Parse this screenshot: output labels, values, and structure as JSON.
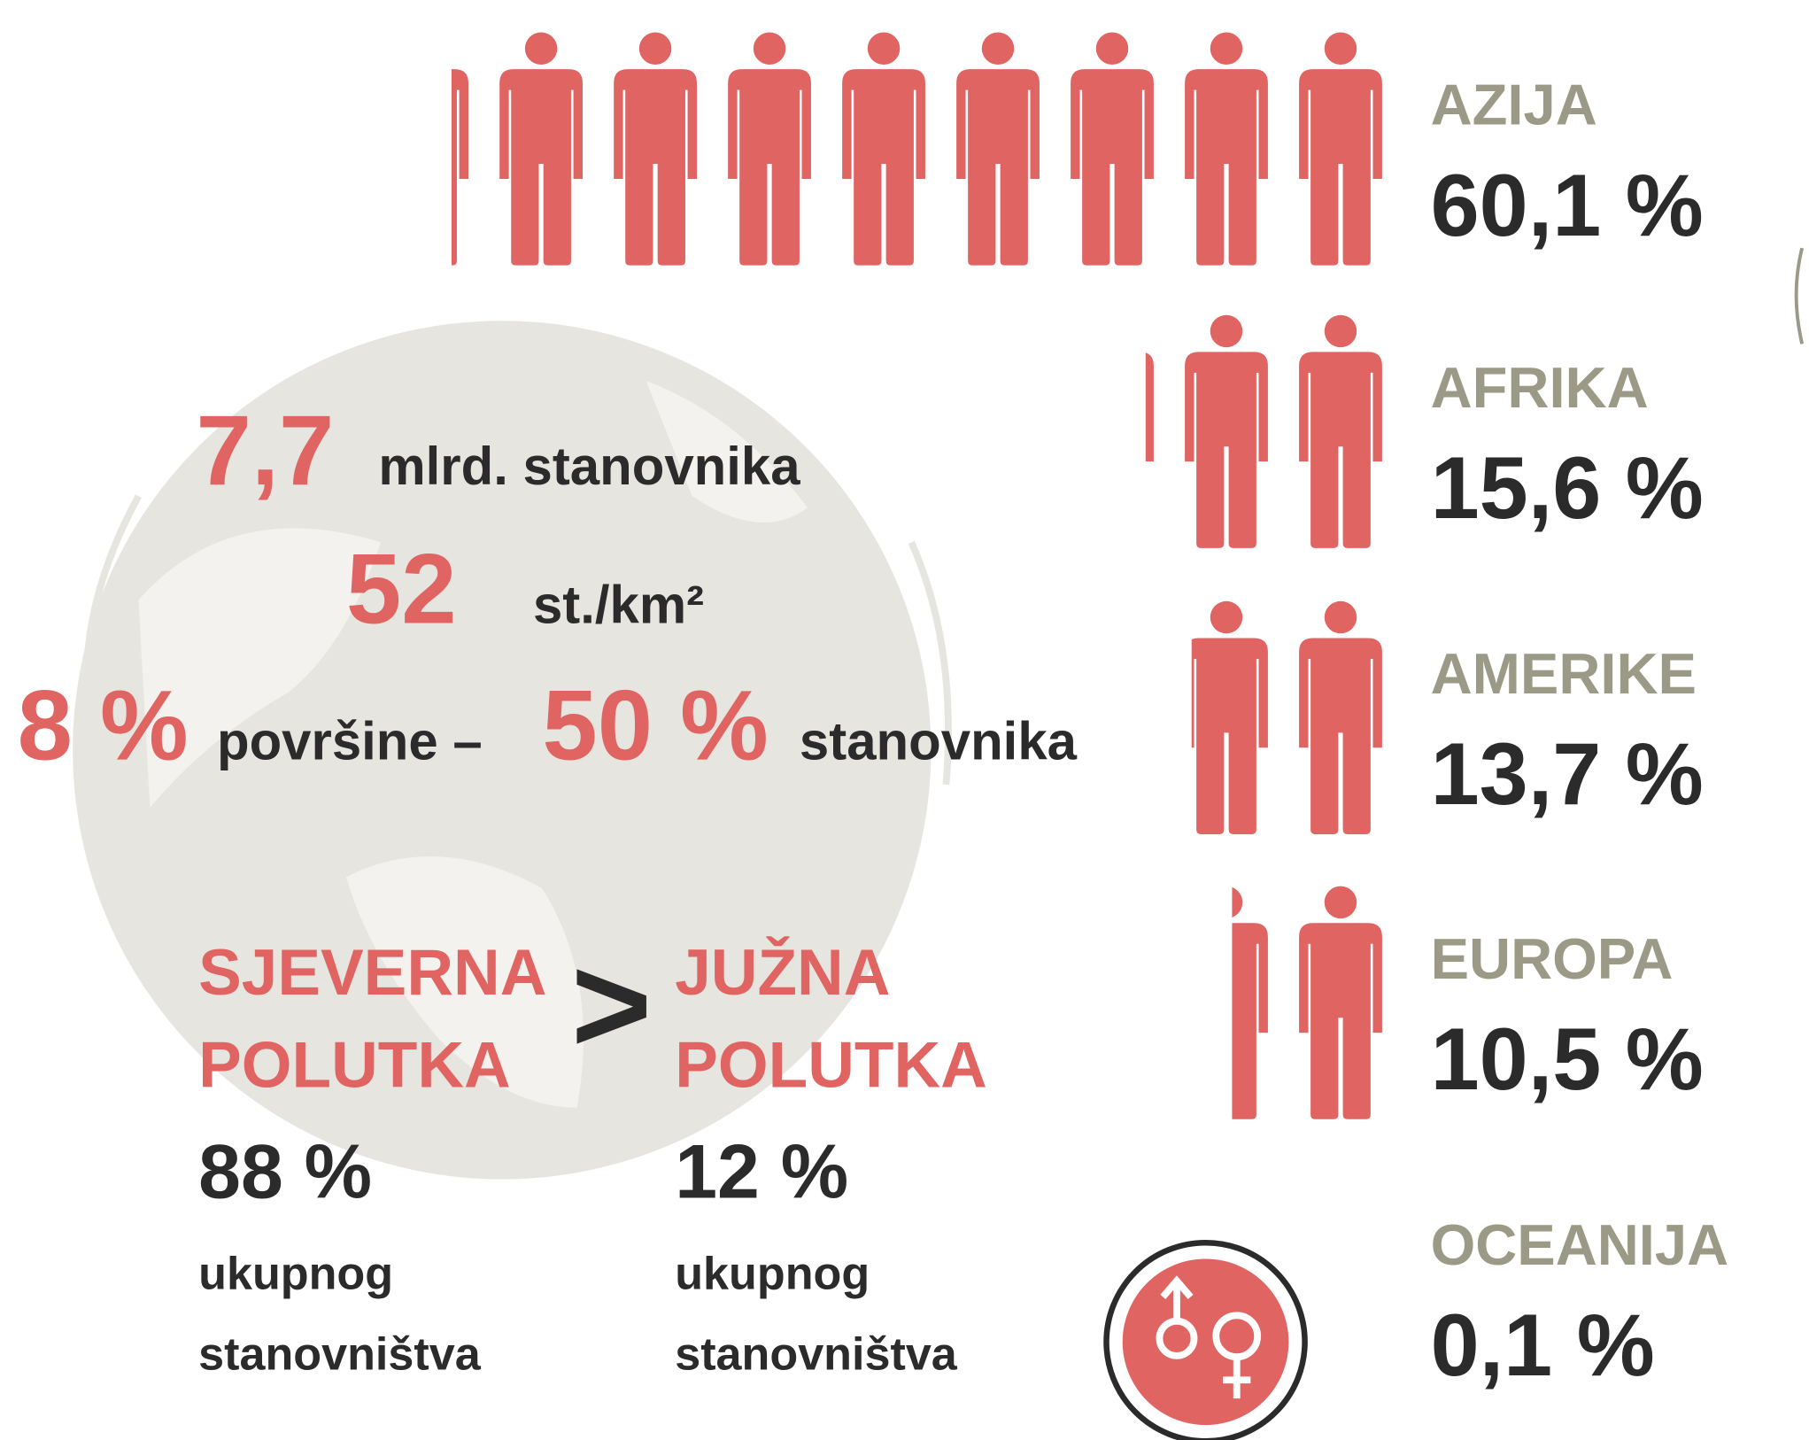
{
  "chart_data": {
    "type": "pictogram",
    "color": "#e06461",
    "categories": [
      "AZIJA",
      "AFRIKA",
      "AMERIKE",
      "EUROPA",
      "OCEANIJA"
    ],
    "values": [
      60.1,
      15.6,
      13.7,
      10.5,
      0.1
    ],
    "value_labels": [
      "60,1 %",
      "15,6 %",
      "13,7 %",
      "10,5 %",
      "0,1 %"
    ]
  },
  "stats": {
    "population_value": "7,7",
    "population_unit": "mlrd. stanovnika",
    "density_value": "52",
    "density_unit": "st./km²",
    "area_value": "8 %",
    "area_text": "površine –",
    "people_value": "50 %",
    "people_text": "stanovnika"
  },
  "hemispheres": {
    "north": {
      "line1": "SJEVERNA",
      "line2": "POLUTKA",
      "value": "88 %",
      "text1": "ukupnog",
      "text2": "stanovništva"
    },
    "comparison": ">",
    "south": {
      "line1": "JUŽNA",
      "line2": "POLUTKA",
      "value": "12 %",
      "text1": "ukupnog",
      "text2": "stanovništva"
    }
  }
}
